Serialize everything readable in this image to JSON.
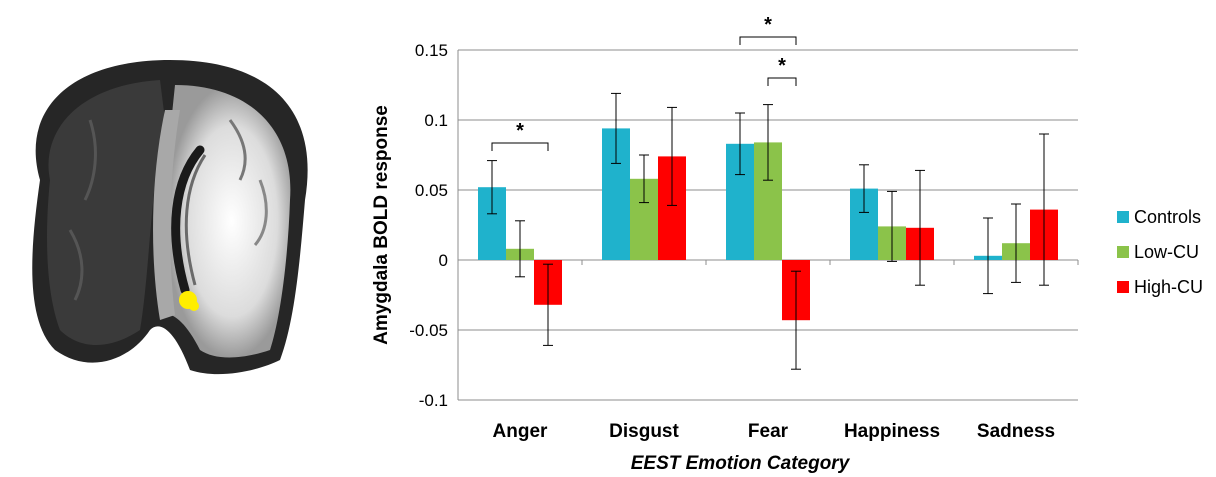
{
  "chart_data": {
    "type": "bar",
    "title": "",
    "xlabel": "EEST Emotion Category",
    "ylabel": "Amygdala BOLD response",
    "ylim": [
      -0.1,
      0.15
    ],
    "yticks": [
      "0.15",
      "0.1",
      "0.05",
      "0",
      "-0.05",
      "-0.1"
    ],
    "ytick_values": [
      0.15,
      0.1,
      0.05,
      0,
      -0.05,
      -0.1
    ],
    "grid": true,
    "legend_position": "right",
    "categories": [
      "Anger",
      "Disgust",
      "Fear",
      "Happiness",
      "Sadness"
    ],
    "series": [
      {
        "name": "Controls",
        "color": "#1fb2cc",
        "values": [
          0.052,
          0.094,
          0.083,
          0.051,
          0.003
        ],
        "errors": [
          0.019,
          0.025,
          0.022,
          0.017,
          0.027
        ]
      },
      {
        "name": "Low-CU",
        "color": "#8bc34a",
        "values": [
          0.008,
          0.058,
          0.084,
          0.024,
          0.012
        ],
        "errors": [
          0.02,
          0.017,
          0.027,
          0.025,
          0.028
        ]
      },
      {
        "name": "High-CU",
        "color": "#ff0000",
        "values": [
          -0.032,
          0.074,
          -0.043,
          0.023,
          0.036
        ],
        "errors": [
          0.029,
          0.035,
          0.035,
          0.041,
          0.054
        ]
      }
    ],
    "significance": [
      {
        "category": "Anger",
        "from_series": "Controls",
        "to_series": "High-CU",
        "label": "*"
      },
      {
        "category": "Fear",
        "from_series": "Controls",
        "to_series": "High-CU",
        "label": "*"
      },
      {
        "category": "Fear",
        "from_series": "Low-CU",
        "to_series": "High-CU",
        "label": "*"
      }
    ]
  },
  "brain_image": {
    "description_icon": "brain-coronal-slice-icon",
    "highlight_color": "#ffee00"
  }
}
